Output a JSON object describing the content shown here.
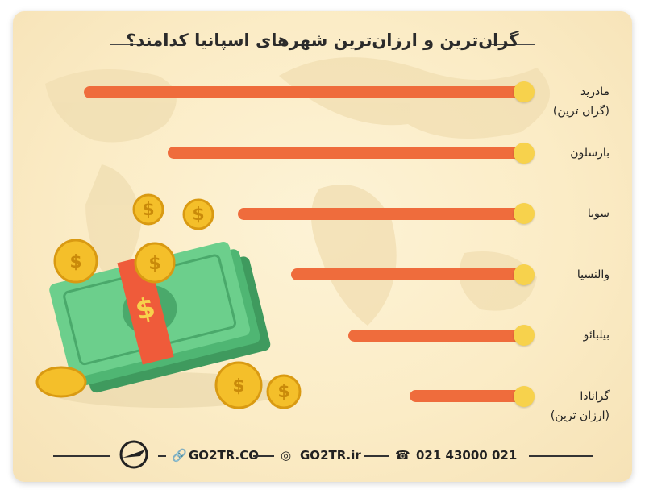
{
  "chart_data": {
    "type": "bar",
    "orientation": "horizontal",
    "title": "گران‌ترین و ارزان‌ترین شهرهای اسپانیا کدامند؟",
    "categories": [
      "مادرید",
      "بارسلون",
      "سویا",
      "والنسیا",
      "بیلبائو",
      "گرانادا"
    ],
    "category_notes": [
      "(گران ترین)",
      null,
      null,
      null,
      null,
      "(ارزان ترین)"
    ],
    "values": [
      100,
      81,
      65,
      53,
      40,
      26
    ],
    "color": "#ef6c3c"
  },
  "footer": {
    "website": "GO2TR.CO",
    "instagram": "GO2TR.ir",
    "phone": "021 43000 021"
  }
}
